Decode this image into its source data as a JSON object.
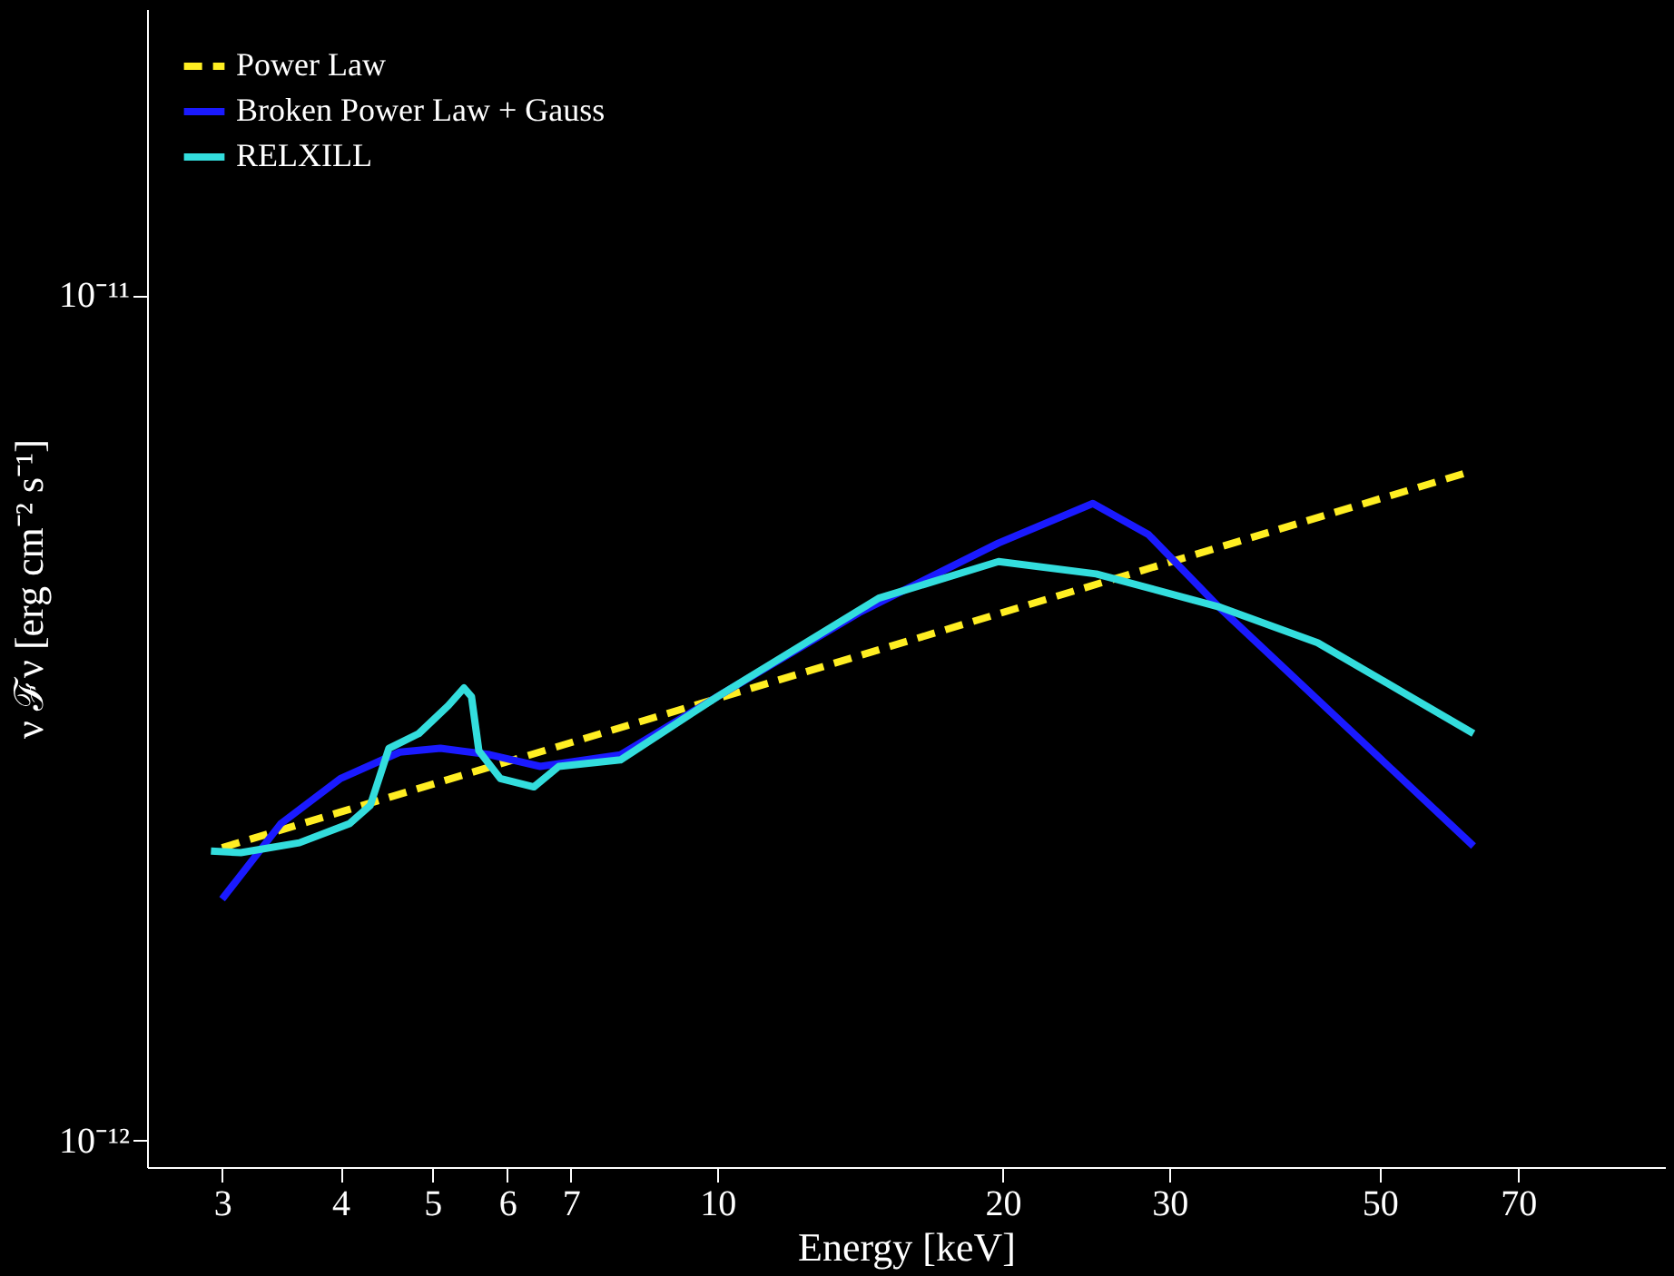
{
  "chart_data": {
    "type": "line",
    "xlabel": "Energy [keV]",
    "ylabel": "ν ℱν [erg cm⁻² s⁻¹]",
    "log": "xy",
    "xlim": [
      2.5,
      100
    ],
    "ylim": [
      9.3e-13,
      2.18e-11
    ],
    "xticks": [
      3,
      4,
      5,
      6,
      7,
      10,
      20,
      30,
      50,
      70
    ],
    "yticks": [
      {
        "value": 1e-12,
        "label": "10⁻¹²"
      },
      {
        "value": 1e-11,
        "label": "10⁻¹¹"
      }
    ],
    "grid": false,
    "legend": "top left",
    "series": [
      {
        "name": "Power Law",
        "color": "#ffee22",
        "line_style": "dashed",
        "x": [
          3,
          62.8
        ],
        "values": [
          2.22e-12,
          6.2e-12
        ]
      },
      {
        "name": "Broken Power Law + Gauss",
        "color": "#1a1aff",
        "line_style": "solid",
        "x": [
          3.0,
          3.46,
          4.0,
          4.62,
          5.1,
          5.75,
          6.5,
          7.9,
          10,
          14.1,
          19.8,
          24.9,
          28.5,
          33.8,
          62.8
        ],
        "values": [
          1.93e-12,
          2.37e-12,
          2.68e-12,
          2.88e-12,
          2.91e-12,
          2.86e-12,
          2.77e-12,
          2.86e-12,
          3.35e-12,
          4.21e-12,
          5.09e-12,
          5.67e-12,
          5.21e-12,
          4.28e-12,
          2.23e-12
        ]
      },
      {
        "name": "RELXILL",
        "color": "#33dddd",
        "line_style": "solid",
        "x": [
          2.92,
          3.14,
          3.62,
          4.09,
          4.3,
          4.5,
          4.84,
          5.2,
          5.4,
          5.5,
          5.6,
          5.9,
          6.4,
          6.8,
          7.9,
          10,
          14.8,
          19.8,
          25.1,
          33.8,
          43,
          62.8
        ],
        "values": [
          2.2e-12,
          2.19e-12,
          2.25e-12,
          2.37e-12,
          2.49e-12,
          2.91e-12,
          3.03e-12,
          3.27e-12,
          3.43e-12,
          3.35e-12,
          2.89e-12,
          2.68e-12,
          2.62e-12,
          2.77e-12,
          2.82e-12,
          3.35e-12,
          4.38e-12,
          4.84e-12,
          4.68e-12,
          4.28e-12,
          3.88e-12,
          3.03e-12
        ]
      }
    ]
  }
}
